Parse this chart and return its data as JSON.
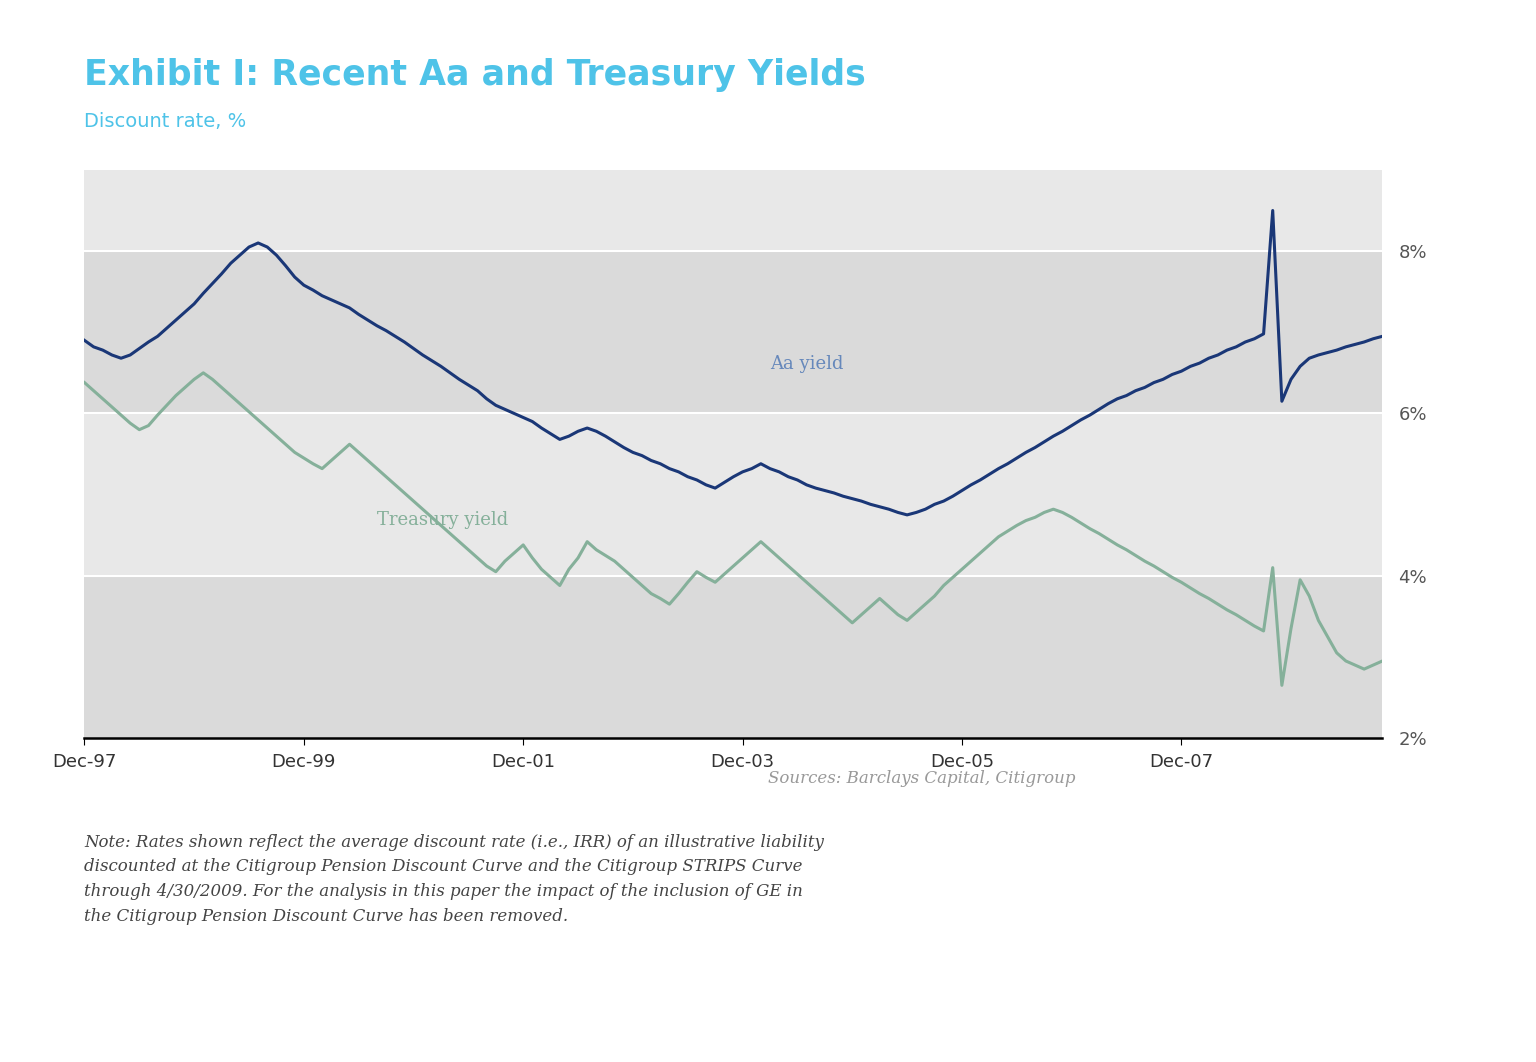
{
  "title": "Exhibit I: Recent Aa and Treasury Yields",
  "subtitle": "Discount rate, %",
  "title_color": "#4ec3e8",
  "subtitle_color": "#4ec3e8",
  "aa_label": "Aa yield",
  "treasury_label": "Treasury yield",
  "aa_color": "#1a3777",
  "treasury_color": "#85b09a",
  "background_color": "#ffffff",
  "plot_bg_light": "#e8e8e8",
  "plot_bg_dark": "#dadada",
  "white_line_color": "#ffffff",
  "ylim": [
    2,
    9
  ],
  "yticks": [
    2,
    4,
    6,
    8
  ],
  "ytick_labels": [
    "2%",
    "4%",
    "6%",
    "8%"
  ],
  "xtick_labels": [
    "Dec-97",
    "Dec-99",
    "Dec-01",
    "Dec-03",
    "Dec-05",
    "Dec-07"
  ],
  "sources_text": "Sources: Barclays Capital, Citigroup",
  "note_text": "Note: Rates shown reflect the average discount rate (i.e., IRR) of an illustrative liability\ndiscounted at the Citigroup Pension Discount Curve and the Citigroup STRIPS Curve\nthrough 4/30/2009. For the analysis in this paper the impact of the inclusion of GE in\nthe Citigroup Pension Discount Curve has been removed.",
  "note_color": "#444444",
  "aa_yield": [
    6.9,
    6.82,
    6.78,
    6.72,
    6.68,
    6.72,
    6.8,
    6.88,
    6.95,
    7.05,
    7.15,
    7.25,
    7.35,
    7.48,
    7.6,
    7.72,
    7.85,
    7.95,
    8.05,
    8.1,
    8.05,
    7.95,
    7.82,
    7.68,
    7.58,
    7.52,
    7.45,
    7.4,
    7.35,
    7.3,
    7.22,
    7.15,
    7.08,
    7.02,
    6.95,
    6.88,
    6.8,
    6.72,
    6.65,
    6.58,
    6.5,
    6.42,
    6.35,
    6.28,
    6.18,
    6.1,
    6.05,
    6.0,
    5.95,
    5.9,
    5.82,
    5.75,
    5.68,
    5.72,
    5.78,
    5.82,
    5.78,
    5.72,
    5.65,
    5.58,
    5.52,
    5.48,
    5.42,
    5.38,
    5.32,
    5.28,
    5.22,
    5.18,
    5.12,
    5.08,
    5.15,
    5.22,
    5.28,
    5.32,
    5.38,
    5.32,
    5.28,
    5.22,
    5.18,
    5.12,
    5.08,
    5.05,
    5.02,
    4.98,
    4.95,
    4.92,
    4.88,
    4.85,
    4.82,
    4.78,
    4.75,
    4.78,
    4.82,
    4.88,
    4.92,
    4.98,
    5.05,
    5.12,
    5.18,
    5.25,
    5.32,
    5.38,
    5.45,
    5.52,
    5.58,
    5.65,
    5.72,
    5.78,
    5.85,
    5.92,
    5.98,
    6.05,
    6.12,
    6.18,
    6.22,
    6.28,
    6.32,
    6.38,
    6.42,
    6.48,
    6.52,
    6.58,
    6.62,
    6.68,
    6.72,
    6.78,
    6.82,
    6.88,
    6.92,
    6.98,
    8.5,
    6.15,
    6.42,
    6.58,
    6.68,
    6.72,
    6.75,
    6.78,
    6.82,
    6.85,
    6.88,
    6.92,
    6.95
  ],
  "treasury_yield": [
    6.38,
    6.28,
    6.18,
    6.08,
    5.98,
    5.88,
    5.8,
    5.85,
    5.98,
    6.1,
    6.22,
    6.32,
    6.42,
    6.5,
    6.42,
    6.32,
    6.22,
    6.12,
    6.02,
    5.92,
    5.82,
    5.72,
    5.62,
    5.52,
    5.45,
    5.38,
    5.32,
    5.42,
    5.52,
    5.62,
    5.52,
    5.42,
    5.32,
    5.22,
    5.12,
    5.02,
    4.92,
    4.82,
    4.72,
    4.62,
    4.52,
    4.42,
    4.32,
    4.22,
    4.12,
    4.05,
    4.18,
    4.28,
    4.38,
    4.22,
    4.08,
    3.98,
    3.88,
    4.08,
    4.22,
    4.42,
    4.32,
    4.25,
    4.18,
    4.08,
    3.98,
    3.88,
    3.78,
    3.72,
    3.65,
    3.78,
    3.92,
    4.05,
    3.98,
    3.92,
    4.02,
    4.12,
    4.22,
    4.32,
    4.42,
    4.32,
    4.22,
    4.12,
    4.02,
    3.92,
    3.82,
    3.72,
    3.62,
    3.52,
    3.42,
    3.52,
    3.62,
    3.72,
    3.62,
    3.52,
    3.45,
    3.55,
    3.65,
    3.75,
    3.88,
    3.98,
    4.08,
    4.18,
    4.28,
    4.38,
    4.48,
    4.55,
    4.62,
    4.68,
    4.72,
    4.78,
    4.82,
    4.78,
    4.72,
    4.65,
    4.58,
    4.52,
    4.45,
    4.38,
    4.32,
    4.25,
    4.18,
    4.12,
    4.05,
    3.98,
    3.92,
    3.85,
    3.78,
    3.72,
    3.65,
    3.58,
    3.52,
    3.45,
    3.38,
    3.32,
    4.1,
    2.65,
    3.35,
    3.95,
    3.75,
    3.45,
    3.25,
    3.05,
    2.95,
    2.9,
    2.85,
    2.9,
    2.95
  ]
}
